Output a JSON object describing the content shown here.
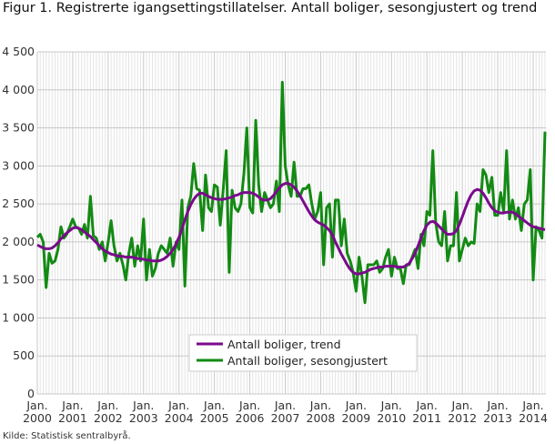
{
  "title": "Figur 1. Registrerte igangsettingstillatelser. Antall boliger, sesongjustert og trend",
  "source": "Kilde: Statistisk sentralbyrå.",
  "chart_data": {
    "type": "line",
    "title": "Figur 1. Registrerte igangsettingstillatelser. Antall boliger, sesongjustert og trend",
    "xlabel": "",
    "ylabel": "",
    "ylim": [
      0,
      4500
    ],
    "yticks": [
      0,
      500,
      1000,
      1500,
      2000,
      2500,
      3000,
      3500,
      4000,
      4500
    ],
    "ytick_labels": [
      "0",
      "500",
      "1 000",
      "1 500",
      "2 000",
      "2 500",
      "3 000",
      "3 500",
      "4 000",
      "4 500"
    ],
    "x_start": "2000-01",
    "x_frequency": "monthly",
    "xtick_labels": [
      [
        "Jan.",
        "2000"
      ],
      [
        "Jan.",
        "2001"
      ],
      [
        "Jan.",
        "2002"
      ],
      [
        "Jan.",
        "2003"
      ],
      [
        "Jan.",
        "2004"
      ],
      [
        "Jan.",
        "2005"
      ],
      [
        "Jan.",
        "2006"
      ],
      [
        "Jan.",
        "2007"
      ],
      [
        "Jan.",
        "2008"
      ],
      [
        "Jan.",
        "2009"
      ],
      [
        "Jan.",
        "2010"
      ],
      [
        "Jan.",
        "2011"
      ],
      [
        "Jan.",
        "2012"
      ],
      [
        "Jan.",
        "2013"
      ],
      [
        "Jan.",
        "2014"
      ]
    ],
    "grid": true,
    "legend_placement": "bottom-center",
    "series": [
      {
        "name": "Antall boliger, trend",
        "color": "#7a0a8c",
        "values": [
          1960,
          1940,
          1920,
          1910,
          1910,
          1920,
          1950,
          1990,
          2040,
          2080,
          2120,
          2150,
          2180,
          2190,
          2180,
          2160,
          2130,
          2100,
          2070,
          2030,
          1990,
          1950,
          1910,
          1880,
          1860,
          1840,
          1830,
          1820,
          1810,
          1810,
          1800,
          1800,
          1800,
          1790,
          1780,
          1780,
          1770,
          1760,
          1760,
          1750,
          1750,
          1750,
          1760,
          1780,
          1810,
          1850,
          1900,
          1970,
          2060,
          2170,
          2290,
          2400,
          2490,
          2560,
          2610,
          2640,
          2640,
          2620,
          2600,
          2580,
          2570,
          2560,
          2560,
          2560,
          2570,
          2580,
          2590,
          2610,
          2620,
          2640,
          2650,
          2650,
          2650,
          2640,
          2620,
          2590,
          2560,
          2550,
          2550,
          2570,
          2610,
          2660,
          2710,
          2750,
          2770,
          2770,
          2750,
          2720,
          2670,
          2610,
          2540,
          2470,
          2400,
          2340,
          2290,
          2260,
          2240,
          2220,
          2190,
          2150,
          2090,
          2000,
          1920,
          1840,
          1770,
          1700,
          1640,
          1600,
          1580,
          1580,
          1590,
          1600,
          1620,
          1640,
          1650,
          1660,
          1670,
          1670,
          1680,
          1680,
          1680,
          1680,
          1670,
          1670,
          1670,
          1690,
          1720,
          1780,
          1850,
          1950,
          2050,
          2150,
          2220,
          2260,
          2270,
          2250,
          2210,
          2170,
          2130,
          2100,
          2100,
          2110,
          2150,
          2230,
          2330,
          2440,
          2540,
          2620,
          2670,
          2690,
          2680,
          2640,
          2580,
          2510,
          2450,
          2410,
          2390,
          2380,
          2380,
          2390,
          2390,
          2390,
          2370,
          2340,
          2310,
          2280,
          2250,
          2220,
          2200,
          2190,
          2180,
          2170,
          2160
        ]
      },
      {
        "name": "Antall boliger, sesongjustert",
        "color": "#138a13",
        "values": [
          2060,
          2100,
          2000,
          1400,
          1850,
          1720,
          1750,
          1900,
          2200,
          2050,
          2100,
          2200,
          2300,
          2200,
          2180,
          2100,
          2230,
          2050,
          2600,
          2080,
          2050,
          1900,
          2000,
          1750,
          2000,
          2280,
          1950,
          1750,
          1850,
          1700,
          1500,
          1850,
          2050,
          1680,
          1950,
          1750,
          2300,
          1500,
          1900,
          1550,
          1650,
          1850,
          1950,
          1900,
          1850,
          2050,
          1680,
          2000,
          1900,
          2550,
          1420,
          2450,
          2600,
          3030,
          2700,
          2680,
          2150,
          2880,
          2450,
          2400,
          2750,
          2720,
          2220,
          2700,
          3200,
          1600,
          2680,
          2450,
          2400,
          2500,
          2900,
          3500,
          2450,
          2380,
          3600,
          2750,
          2400,
          2650,
          2550,
          2450,
          2500,
          2800,
          2400,
          4100,
          3000,
          2750,
          2600,
          3050,
          2600,
          2600,
          2700,
          2700,
          2750,
          2500,
          2300,
          2400,
          2650,
          1700,
          2450,
          2500,
          1800,
          2550,
          2550,
          1950,
          2300,
          1850,
          1750,
          1600,
          1350,
          1800,
          1550,
          1200,
          1700,
          1700,
          1700,
          1750,
          1600,
          1650,
          1800,
          1900,
          1550,
          1800,
          1650,
          1650,
          1450,
          1700,
          1700,
          1800,
          1900,
          1650,
          2100,
          1950,
          2400,
          2350,
          3200,
          2250,
          2000,
          1950,
          2400,
          1750,
          1950,
          1950,
          2650,
          1750,
          1900,
          2050,
          1950,
          2000,
          1980,
          2500,
          2400,
          2950,
          2880,
          2650,
          2850,
          2350,
          2350,
          2650,
          2400,
          3200,
          2300,
          2550,
          2300,
          2450,
          2150,
          2500,
          2550,
          2950,
          1500,
          2200,
          2150,
          2050,
          3450
        ]
      }
    ]
  }
}
